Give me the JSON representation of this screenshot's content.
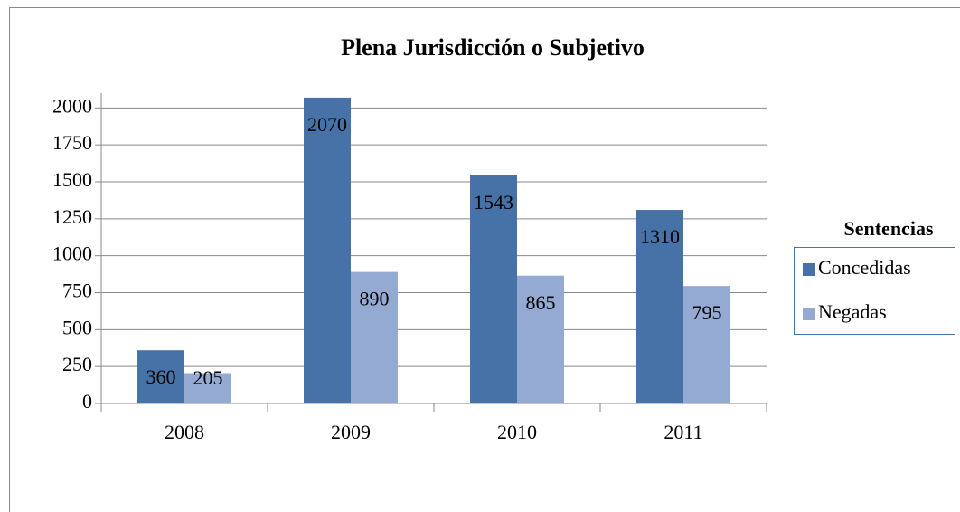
{
  "chart_data": {
    "type": "bar",
    "title": "Plena Jurisdicción o Subjetivo",
    "categories": [
      "2008",
      "2009",
      "2010",
      "2011"
    ],
    "legend_title": "Sentencias",
    "series": [
      {
        "name": "Concedidas",
        "color": "#4672a8",
        "values": [
          360,
          2070,
          1543,
          1310
        ]
      },
      {
        "name": "Negadas",
        "color": "#95aad3",
        "values": [
          205,
          890,
          865,
          795
        ]
      }
    ],
    "ylim": [
      0,
      2100
    ],
    "yticks": [
      0,
      250,
      500,
      750,
      1000,
      1250,
      1500,
      1750,
      2000
    ],
    "grid": true,
    "legend": "right"
  }
}
